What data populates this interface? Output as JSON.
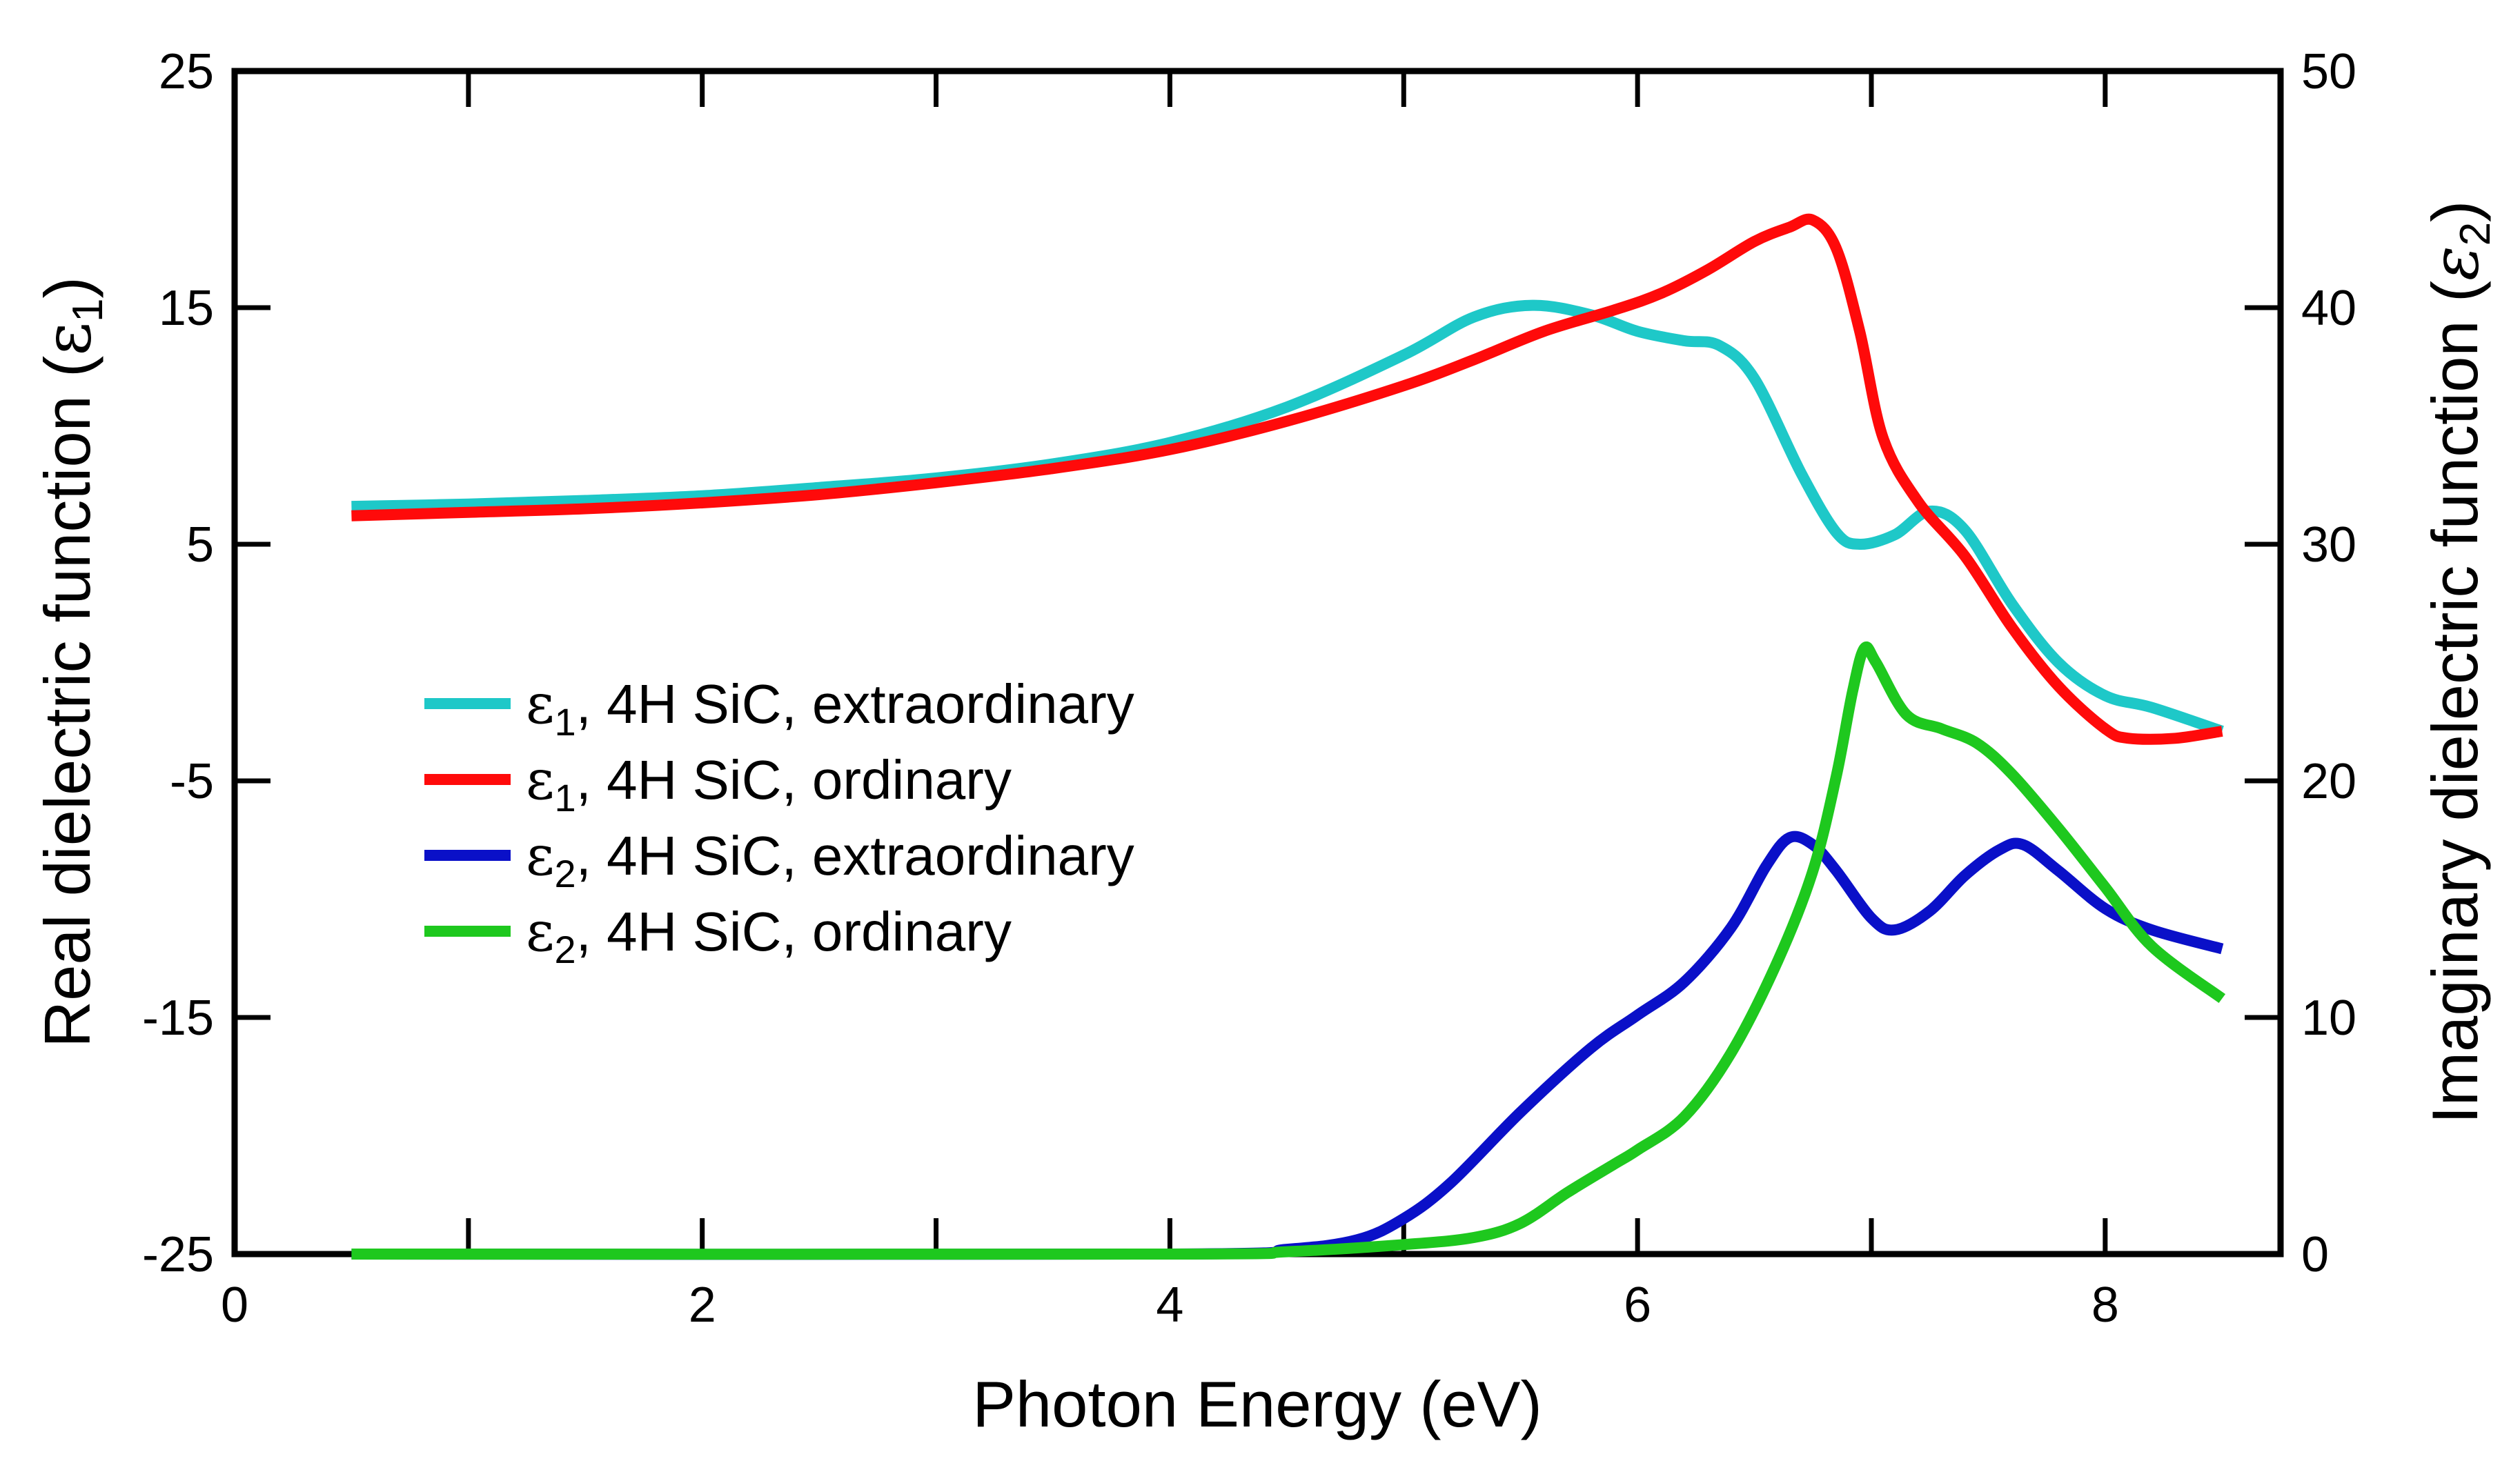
{
  "chart_data": {
    "type": "line",
    "xlabel": "Photon Energy (eV)",
    "ylabel_left": {
      "text": "Real dielectric function (",
      "symbol": "ε",
      "sub": "1",
      "close": ")"
    },
    "ylabel_right": {
      "text": "Imaginary dielectric function (",
      "symbol": "ε",
      "sub": "2",
      "close": ")"
    },
    "xlim": [
      0,
      8.75
    ],
    "ylim_left": [
      -25,
      25
    ],
    "ylim_right": [
      0,
      50
    ],
    "x_ticks": [
      "0",
      "2",
      "4",
      "6",
      "8"
    ],
    "y_ticks_left": [
      "25",
      "15",
      "5",
      "-5",
      "-15",
      "-25"
    ],
    "y_ticks_right": [
      "50",
      "40",
      "30",
      "20",
      "10",
      "0"
    ],
    "legend_position": "center-left",
    "series": [
      {
        "name": "ε1, 4H SiC, extraordinary",
        "legend_symbol": "ε",
        "legend_sub": "1",
        "legend_rest": ", 4H SiC, extraordinary",
        "color": "#1ec8c8",
        "axis": "left",
        "points": [
          [
            0.5,
            6.6
          ],
          [
            1.0,
            6.7
          ],
          [
            1.5,
            6.85
          ],
          [
            2.0,
            7.05
          ],
          [
            2.5,
            7.4
          ],
          [
            3.0,
            7.8
          ],
          [
            3.5,
            8.4
          ],
          [
            4.0,
            9.3
          ],
          [
            4.5,
            10.8
          ],
          [
            5.0,
            13.0
          ],
          [
            5.3,
            14.6
          ],
          [
            5.55,
            15.1
          ],
          [
            5.8,
            14.7
          ],
          [
            6.0,
            14.0
          ],
          [
            6.2,
            13.6
          ],
          [
            6.35,
            13.4
          ],
          [
            6.5,
            12.0
          ],
          [
            6.7,
            8.0
          ],
          [
            6.85,
            5.5
          ],
          [
            6.95,
            5.0
          ],
          [
            7.1,
            5.4
          ],
          [
            7.25,
            6.4
          ],
          [
            7.4,
            5.6
          ],
          [
            7.6,
            2.5
          ],
          [
            7.8,
            0.0
          ],
          [
            8.0,
            -1.4
          ],
          [
            8.2,
            -1.9
          ],
          [
            8.5,
            -2.9
          ]
        ]
      },
      {
        "name": "ε1, 4H SiC, ordinary",
        "legend_symbol": "ε",
        "legend_sub": "1",
        "legend_rest": ", 4H SiC, ordinary",
        "color": "#ff0a0a",
        "axis": "left",
        "points": [
          [
            0.5,
            6.2
          ],
          [
            1.0,
            6.35
          ],
          [
            1.5,
            6.5
          ],
          [
            2.0,
            6.75
          ],
          [
            2.5,
            7.1
          ],
          [
            3.0,
            7.6
          ],
          [
            3.5,
            8.2
          ],
          [
            4.0,
            9.0
          ],
          [
            4.5,
            10.2
          ],
          [
            5.0,
            11.7
          ],
          [
            5.3,
            12.8
          ],
          [
            5.6,
            14.0
          ],
          [
            5.9,
            14.9
          ],
          [
            6.1,
            15.6
          ],
          [
            6.3,
            16.6
          ],
          [
            6.5,
            17.8
          ],
          [
            6.65,
            18.4
          ],
          [
            6.75,
            18.7
          ],
          [
            6.85,
            17.5
          ],
          [
            6.95,
            14.0
          ],
          [
            7.05,
            9.5
          ],
          [
            7.2,
            6.8
          ],
          [
            7.4,
            4.5
          ],
          [
            7.6,
            1.5
          ],
          [
            7.8,
            -1.0
          ],
          [
            8.0,
            -2.8
          ],
          [
            8.1,
            -3.2
          ],
          [
            8.3,
            -3.2
          ],
          [
            8.5,
            -2.9
          ]
        ]
      },
      {
        "name": "ε2, 4H SiC, extraordinary",
        "legend_symbol": "ε",
        "legend_sub": "2",
        "legend_rest": ", 4H SiC, extraordinary",
        "color": "#0a10c8",
        "axis": "right",
        "points": [
          [
            0.5,
            0
          ],
          [
            4.0,
            0
          ],
          [
            4.5,
            0.2
          ],
          [
            4.8,
            0.6
          ],
          [
            5.0,
            1.5
          ],
          [
            5.2,
            3.0
          ],
          [
            5.5,
            6.0
          ],
          [
            5.8,
            8.7
          ],
          [
            6.0,
            10.1
          ],
          [
            6.2,
            11.5
          ],
          [
            6.4,
            13.8
          ],
          [
            6.55,
            16.4
          ],
          [
            6.65,
            17.6
          ],
          [
            6.75,
            17.3
          ],
          [
            6.85,
            16.2
          ],
          [
            7.0,
            14.2
          ],
          [
            7.1,
            13.7
          ],
          [
            7.25,
            14.5
          ],
          [
            7.4,
            16.0
          ],
          [
            7.55,
            17.1
          ],
          [
            7.65,
            17.3
          ],
          [
            7.8,
            16.2
          ],
          [
            8.0,
            14.6
          ],
          [
            8.2,
            13.7
          ],
          [
            8.5,
            12.9
          ]
        ]
      },
      {
        "name": "ε2, 4H SiC, ordinary",
        "legend_symbol": "ε",
        "legend_sub": "2",
        "legend_rest": ", 4H SiC, ordinary",
        "color": "#1ec81e",
        "axis": "right",
        "points": [
          [
            0.5,
            0
          ],
          [
            4.0,
            0
          ],
          [
            4.5,
            0.1
          ],
          [
            5.0,
            0.4
          ],
          [
            5.3,
            0.7
          ],
          [
            5.5,
            1.3
          ],
          [
            5.7,
            2.6
          ],
          [
            5.9,
            3.8
          ],
          [
            6.0,
            4.4
          ],
          [
            6.2,
            5.8
          ],
          [
            6.4,
            8.5
          ],
          [
            6.6,
            12.4
          ],
          [
            6.75,
            16.2
          ],
          [
            6.85,
            20.2
          ],
          [
            6.92,
            23.8
          ],
          [
            6.97,
            25.6
          ],
          [
            7.02,
            25.0
          ],
          [
            7.15,
            22.8
          ],
          [
            7.3,
            22.2
          ],
          [
            7.45,
            21.6
          ],
          [
            7.6,
            20.3
          ],
          [
            7.8,
            18.0
          ],
          [
            8.0,
            15.5
          ],
          [
            8.2,
            13.0
          ],
          [
            8.5,
            10.8
          ]
        ]
      }
    ]
  }
}
